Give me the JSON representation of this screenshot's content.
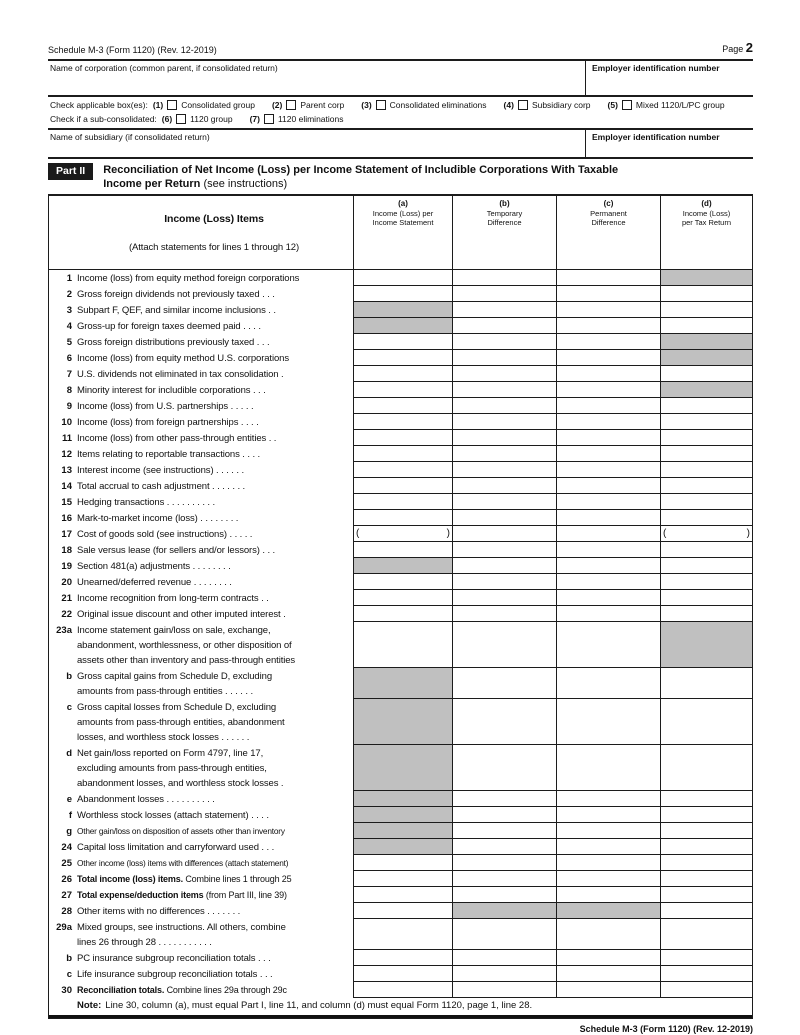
{
  "header": {
    "form_id": "Schedule M-3 (Form 1120) (Rev. 12-2019)",
    "page_label": "Page",
    "page_number": "2"
  },
  "fields": {
    "name_corp_label": "Name of corporation (common parent, if consolidated return)",
    "ein_label": "Employer identification number",
    "name_sub_label": "Name of subsidiary (if consolidated return)",
    "ein2_label": "Employer identification number"
  },
  "checkboxes": {
    "line1_prefix": "Check applicable box(es):",
    "line1": [
      {
        "num": "(1)",
        "label": "Consolidated group"
      },
      {
        "num": "(2)",
        "label": "Parent corp"
      },
      {
        "num": "(3)",
        "label": "Consolidated eliminations"
      },
      {
        "num": "(4)",
        "label": "Subsidiary corp"
      },
      {
        "num": "(5)",
        "label": "Mixed 1120/L/PC group"
      }
    ],
    "line2_prefix": "Check if a sub-consolidated:",
    "line2": [
      {
        "num": "(6)",
        "label": "1120 group"
      },
      {
        "num": "(7)",
        "label": "1120 eliminations"
      }
    ]
  },
  "part2": {
    "tag": "Part II",
    "title_line1": "Reconciliation of Net Income (Loss) per Income Statement of Includible Corporations With Taxable",
    "title_line2_bold": "Income per Return",
    "title_line2_normal": "(see instructions)"
  },
  "table": {
    "items_header": "Income (Loss) Items",
    "items_subheader": "(Attach statements for lines 1 through 12)",
    "paren_open": "(",
    "paren_close": ")",
    "columns": [
      {
        "letter": "(a)",
        "line1": "Income (Loss) per",
        "line2": "Income Statement"
      },
      {
        "letter": "(b)",
        "line1": "Temporary",
        "line2": "Difference"
      },
      {
        "letter": "(c)",
        "line1": "Permanent",
        "line2": "Difference"
      },
      {
        "letter": "(d)",
        "line1": "Income (Loss)",
        "line2": "per Tax Return"
      }
    ],
    "rows": [
      {
        "num": "1",
        "label": "Income (loss) from equity method foreign corporations",
        "shade": [
          "d"
        ]
      },
      {
        "num": "2",
        "label": "Gross foreign dividends not previously taxed .  .   ."
      },
      {
        "num": "3",
        "label": "Subpart F, QEF, and similar income inclusions   .   .",
        "shade": [
          "a"
        ]
      },
      {
        "num": "4",
        "label": "Gross-up for foreign taxes deemed paid   .   .   .   .",
        "shade": [
          "a"
        ]
      },
      {
        "num": "5",
        "label": "Gross foreign distributions previously taxed   .   .   .",
        "shade": [
          "d"
        ]
      },
      {
        "num": "6",
        "label": "Income (loss) from equity method U.S. corporations",
        "shade": [
          "d"
        ]
      },
      {
        "num": "7",
        "label": "U.S. dividends not eliminated in tax consolidation   ."
      },
      {
        "num": "8",
        "label": "Minority interest for includible corporations   .   .   .",
        "shade": [
          "d"
        ]
      },
      {
        "num": "9",
        "label": "Income (loss) from U.S. partnerships    .   .   .   .   ."
      },
      {
        "num": "10",
        "label": "Income (loss) from foreign partnerships    .   .   .   ."
      },
      {
        "num": "11",
        "label": "Income (loss) from other pass-through entities   .   ."
      },
      {
        "num": "12",
        "label": "Items relating to reportable transactions   .   .   .   ."
      },
      {
        "num": "13",
        "label": "Interest income (see instructions)    .   .   .   .   .   ."
      },
      {
        "num": "14",
        "label": "Total accrual to cash adjustment .   .   .   .   .   .   ."
      },
      {
        "num": "15",
        "label": "Hedging transactions    .   .   .   .   .   .   .   .   .   ."
      },
      {
        "num": "16",
        "label": "Mark-to-market income (loss) .   .   .   .   .   .   .   ."
      },
      {
        "num": "17",
        "label": "Cost of goods sold (see instructions)    .   .   .   .   .",
        "parens": [
          "a",
          "d"
        ]
      },
      {
        "num": "18",
        "label": "Sale versus lease (for sellers and/or lessors)   .   .   ."
      },
      {
        "num": "19",
        "label": "Section 481(a) adjustments    .   .   .   .   .   .   .   .",
        "shade": [
          "a"
        ]
      },
      {
        "num": "20",
        "label": "Unearned/deferred revenue    .   .   .   .   .   .   .   ."
      },
      {
        "num": "21",
        "label": "Income recognition from long-term contracts    .   ."
      },
      {
        "num": "22",
        "label": "Original issue discount and other imputed interest  ."
      },
      {
        "num": "23a",
        "label": "Income statement gain/loss on sale, exchange,\nabandonment, worthlessness, or other disposition of\nassets other than inventory and pass-through entities",
        "shade": [
          "d"
        ]
      },
      {
        "num": "b",
        "label": "Gross capital gains from Schedule D, excluding\namounts from pass-through entities .   .   .   .   .   .",
        "shade": [
          "a"
        ]
      },
      {
        "num": "c",
        "label": "Gross capital losses from Schedule D, excluding\namounts from pass-through entities, abandonment\nlosses, and worthless stock losses   .   .   .   .   .   .",
        "shade": [
          "a"
        ]
      },
      {
        "num": "d",
        "label": "Net gain/loss reported on Form 4797, line 17,\nexcluding amounts from pass-through entities,\nabandonment losses, and worthless stock losses   .",
        "shade": [
          "a"
        ]
      },
      {
        "num": "e",
        "label": "Abandonment losses     .   .   .   .   .   .   .   .   .   .",
        "shade": [
          "a"
        ]
      },
      {
        "num": "f",
        "label": "Worthless stock losses (attach statement) .   .   .   .",
        "shade": [
          "a"
        ]
      },
      {
        "num": "g",
        "label": "Other gain/loss on disposition of assets other than inventory",
        "shade": [
          "a"
        ],
        "small": true
      },
      {
        "num": "24",
        "label": "Capital loss limitation and carryforward used .   .   .",
        "shade": [
          "a"
        ]
      },
      {
        "num": "25",
        "label": "Other income (loss) items with differences (attach statement)",
        "small": true
      },
      {
        "num": "26",
        "label_bold": "Total income (loss) items.",
        "label": "Combine lines 1 through 25",
        "tight": true
      },
      {
        "num": "27",
        "label_bold": "Total expense/deduction items",
        "label": "(from Part III, line 39)",
        "tight": true
      },
      {
        "num": "28",
        "label": "Other items with no differences    .   .   .   .   .   .   .",
        "shade": [
          "b",
          "c"
        ]
      },
      {
        "num": "29a",
        "label": "Mixed groups, see instructions. All others, combine\nlines 26 through 28   .   .   .   .   .   .   .   .   .   .   ."
      },
      {
        "num": "b",
        "label": "PC insurance subgroup reconciliation totals  .   .   ."
      },
      {
        "num": "c",
        "label": "Life insurance subgroup reconciliation totals .   .   ."
      },
      {
        "num": "30",
        "label_bold": "Reconciliation totals.",
        "label": "Combine lines 29a through 29c",
        "tight": true
      }
    ]
  },
  "note": {
    "bold": "Note:",
    "text": "Line 30, column (a), must equal Part I, line 11, and column (d) must equal Form 1120, page 1, line 28."
  },
  "footer": "Schedule M-3 (Form 1120) (Rev. 12-2019)"
}
